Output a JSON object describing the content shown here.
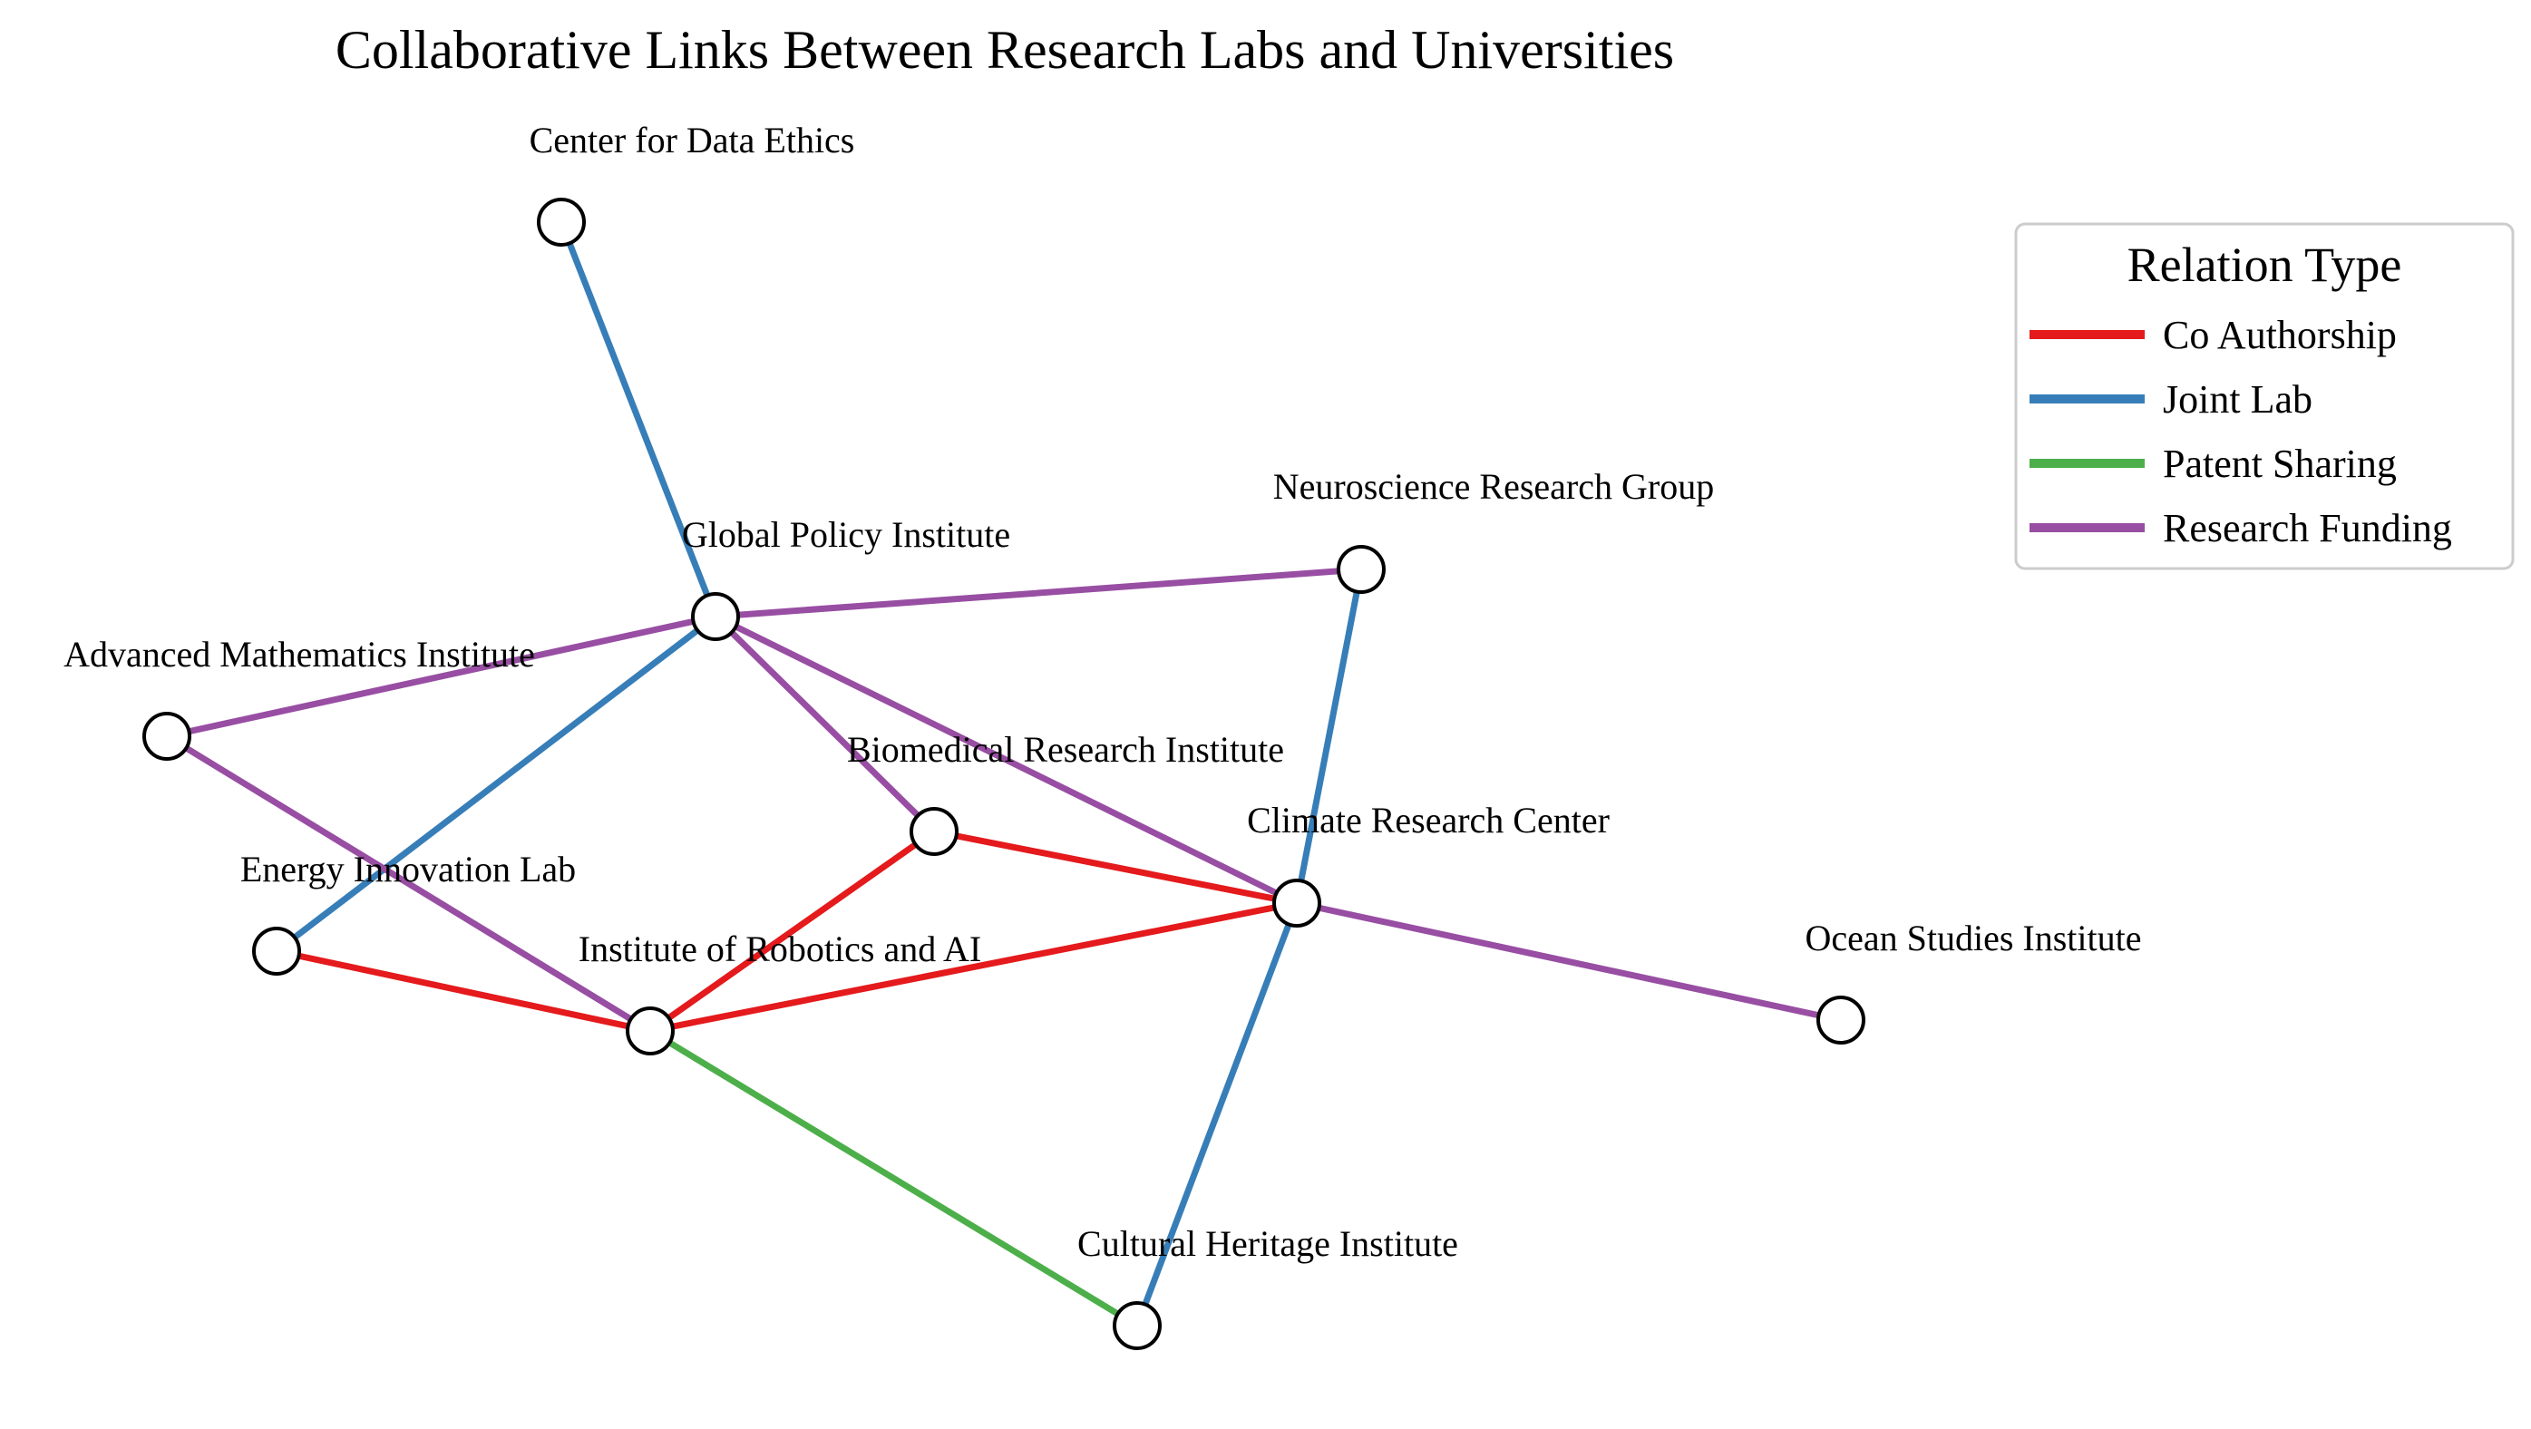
{
  "title": "Collaborative Links Between Research Labs and Universities",
  "relation_colors": {
    "Co Authorship": "#e41a1c",
    "Joint Lab": "#377eb8",
    "Patent Sharing": "#4daf4a",
    "Research Funding": "#984ea3"
  },
  "legend": {
    "title": "Relation Type",
    "items": [
      {
        "label": "Co Authorship",
        "type": "Co Authorship"
      },
      {
        "label": "Joint Lab",
        "type": "Joint Lab"
      },
      {
        "label": "Patent Sharing",
        "type": "Patent Sharing"
      },
      {
        "label": "Research Funding",
        "type": "Research Funding"
      }
    ]
  },
  "nodes": [
    {
      "id": "cde",
      "label": "Center for Data Ethics"
    },
    {
      "id": "gpi",
      "label": "Global Policy Institute"
    },
    {
      "id": "nrg",
      "label": "Neuroscience Research Group"
    },
    {
      "id": "ami",
      "label": "Advanced Mathematics Institute"
    },
    {
      "id": "bri",
      "label": "Biomedical Research Institute"
    },
    {
      "id": "crc",
      "label": "Climate Research Center"
    },
    {
      "id": "eil",
      "label": "Energy Innovation Lab"
    },
    {
      "id": "ira",
      "label": "Institute of Robotics and AI"
    },
    {
      "id": "osi",
      "label": "Ocean Studies Institute"
    },
    {
      "id": "chi",
      "label": "Cultural Heritage Institute"
    }
  ],
  "edges": [
    {
      "source": "cde",
      "target": "gpi",
      "type": "Joint Lab"
    },
    {
      "source": "gpi",
      "target": "nrg",
      "type": "Research Funding"
    },
    {
      "source": "gpi",
      "target": "ami",
      "type": "Research Funding"
    },
    {
      "source": "gpi",
      "target": "eil",
      "type": "Joint Lab"
    },
    {
      "source": "gpi",
      "target": "bri",
      "type": "Research Funding"
    },
    {
      "source": "gpi",
      "target": "crc",
      "type": "Research Funding"
    },
    {
      "source": "nrg",
      "target": "crc",
      "type": "Joint Lab"
    },
    {
      "source": "ami",
      "target": "ira",
      "type": "Research Funding"
    },
    {
      "source": "bri",
      "target": "crc",
      "type": "Co Authorship"
    },
    {
      "source": "bri",
      "target": "ira",
      "type": "Co Authorship"
    },
    {
      "source": "eil",
      "target": "ira",
      "type": "Co Authorship"
    },
    {
      "source": "ira",
      "target": "crc",
      "type": "Co Authorship"
    },
    {
      "source": "ira",
      "target": "chi",
      "type": "Patent Sharing"
    },
    {
      "source": "crc",
      "target": "osi",
      "type": "Research Funding"
    },
    {
      "source": "crc",
      "target": "chi",
      "type": "Joint Lab"
    }
  ]
}
